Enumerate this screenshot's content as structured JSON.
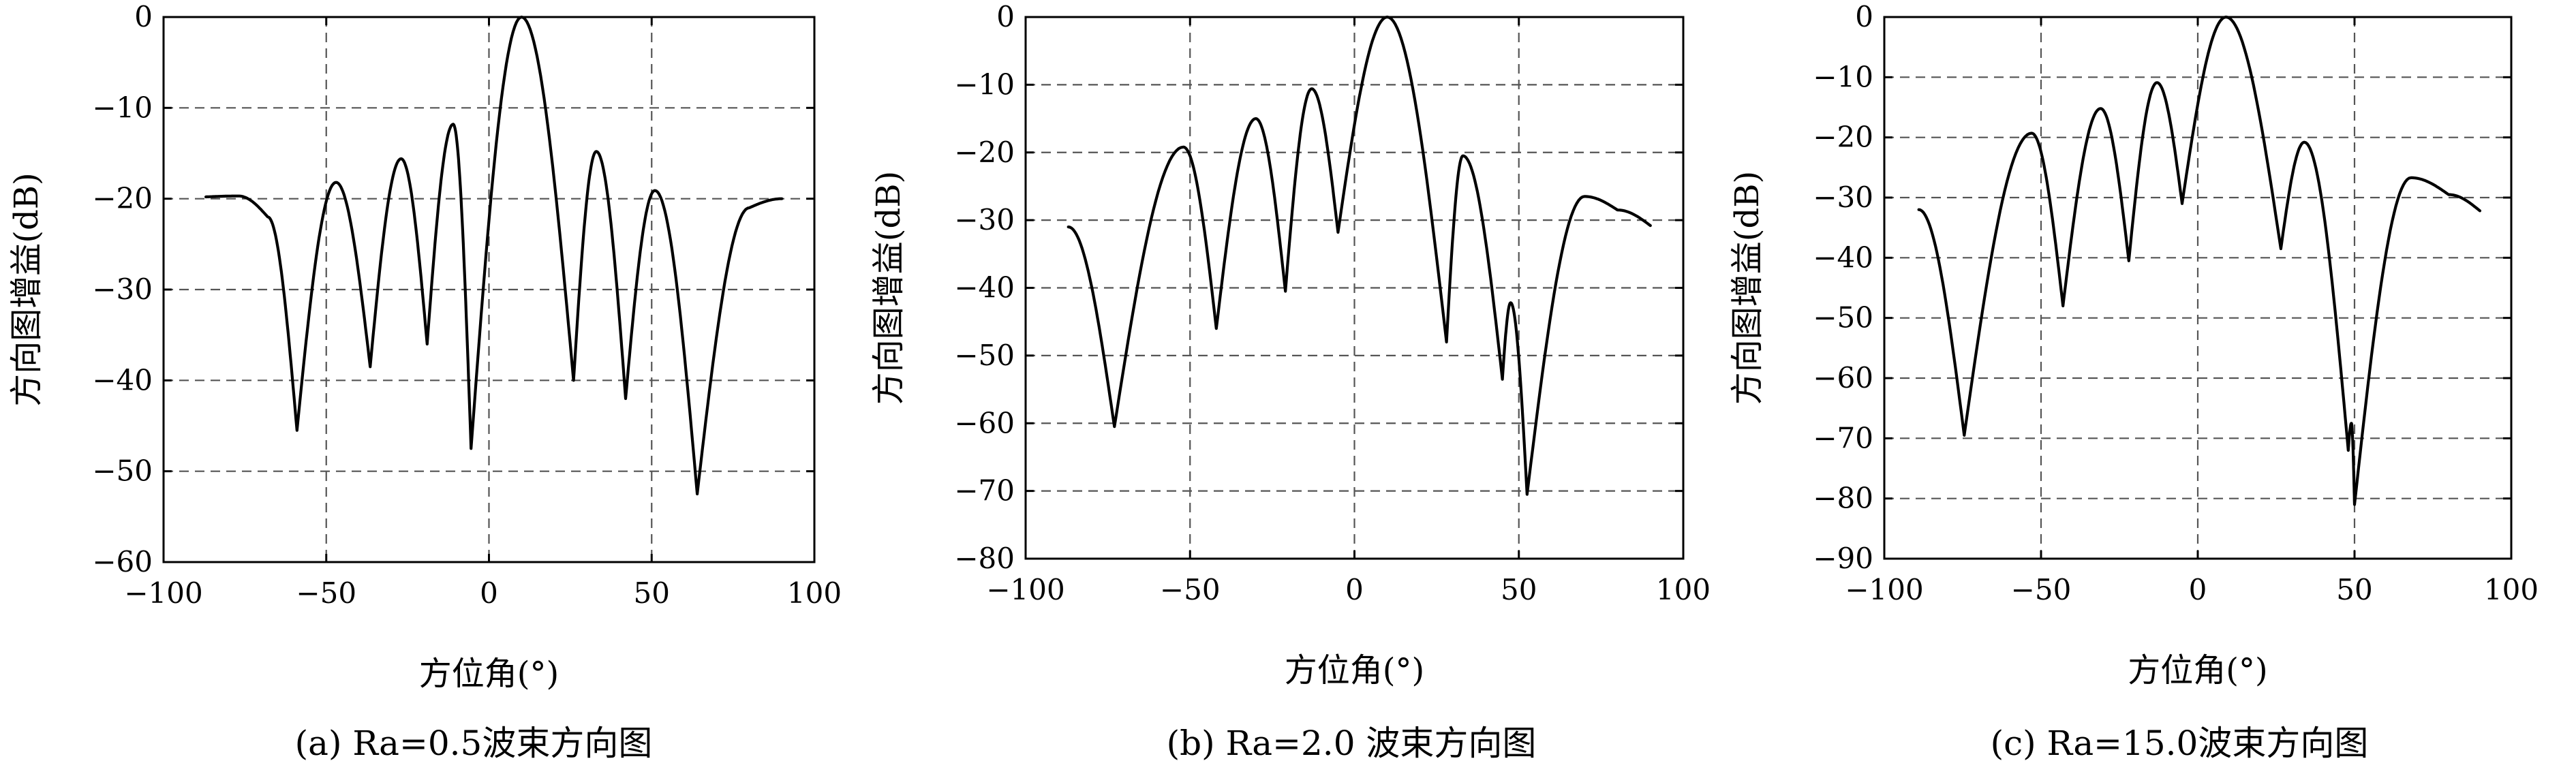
{
  "chart_data": [
    {
      "type": "line",
      "caption": "(a) Ra=0.5波束方向图",
      "xlabel": "方位角(°)",
      "ylabel": "方向图增益(dB)",
      "xlim": [
        -100,
        100
      ],
      "ylim": [
        -60,
        0
      ],
      "xticks": [
        -100,
        -50,
        0,
        50,
        100
      ],
      "yticks": [
        0,
        -10,
        -20,
        -30,
        -40,
        -50,
        -60
      ],
      "grid": true,
      "series": [
        {
          "peaks": [
            [
              -87,
              -19.8
            ],
            [
              -77,
              -19.7
            ],
            [
              -68,
              -22
            ],
            [
              -59,
              -45.5
            ],
            [
              -47,
              -18.2
            ],
            [
              -36.5,
              -38.5
            ],
            [
              -27,
              -15.6
            ],
            [
              -19,
              -36
            ],
            [
              -11,
              -11.8
            ],
            [
              -5.5,
              -47.5
            ],
            [
              10,
              0
            ],
            [
              26,
              -40
            ],
            [
              33,
              -14.8
            ],
            [
              42,
              -42
            ],
            [
              51,
              -19.1
            ],
            [
              64,
              -52.5
            ],
            [
              80,
              -21
            ],
            [
              90,
              -20
            ]
          ]
        }
      ]
    },
    {
      "type": "line",
      "caption": "(b) Ra=2.0 波束方向图",
      "xlabel": "方位角(°)",
      "ylabel": "方向图增益(dB)",
      "xlim": [
        -100,
        100
      ],
      "ylim": [
        -80,
        0
      ],
      "xticks": [
        -100,
        -50,
        0,
        50,
        100
      ],
      "yticks": [
        0,
        -10,
        -20,
        -30,
        -40,
        -50,
        -60,
        -70,
        -80
      ],
      "grid": true,
      "series": [
        {
          "peaks": [
            [
              -87,
              -31
            ],
            [
              -73,
              -60.5
            ],
            [
              -52,
              -19.2
            ],
            [
              -42,
              -46
            ],
            [
              -30,
              -15
            ],
            [
              -21,
              -40.5
            ],
            [
              -13,
              -10.6
            ],
            [
              -5,
              -31.8
            ],
            [
              10,
              0
            ],
            [
              28,
              -48
            ],
            [
              33,
              -20.5
            ],
            [
              45,
              -53.5
            ],
            [
              47.5,
              -42.2
            ],
            [
              52.5,
              -70.5
            ],
            [
              70,
              -26.5
            ],
            [
              80,
              -28.5
            ],
            [
              90,
              -30.8
            ]
          ]
        }
      ]
    },
    {
      "type": "line",
      "caption": "(c) Ra=15.0波束方向图",
      "xlabel": "方位角(°)",
      "ylabel": "方向图增益(dB)",
      "xlim": [
        -100,
        100
      ],
      "ylim": [
        -90,
        0
      ],
      "xticks": [
        -100,
        -50,
        0,
        50,
        100
      ],
      "yticks": [
        0,
        -10,
        -20,
        -30,
        -40,
        -50,
        -60,
        -70,
        -80,
        -90
      ],
      "grid": true,
      "series": [
        {
          "peaks": [
            [
              -89,
              -32
            ],
            [
              -74.5,
              -69.5
            ],
            [
              -53,
              -19.3
            ],
            [
              -43,
              -48
            ],
            [
              -31,
              -15.2
            ],
            [
              -22,
              -40.5
            ],
            [
              -13,
              -10.9
            ],
            [
              -5,
              -31
            ],
            [
              9,
              0
            ],
            [
              26.5,
              -38.5
            ],
            [
              34,
              -20.8
            ],
            [
              48,
              -72
            ],
            [
              49,
              -67.5
            ],
            [
              50,
              -81
            ],
            [
              68,
              -26.7
            ],
            [
              80,
              -29.5
            ],
            [
              90,
              -32.2
            ]
          ]
        }
      ]
    }
  ]
}
